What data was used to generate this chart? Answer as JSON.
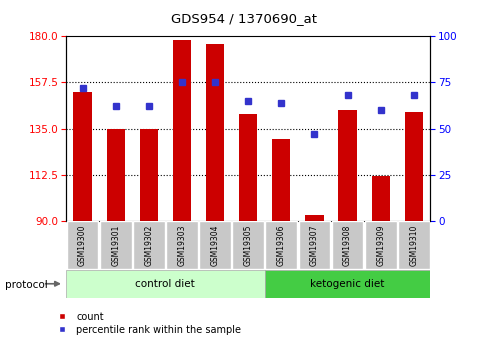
{
  "title": "GDS954 / 1370690_at",
  "samples": [
    "GSM19300",
    "GSM19301",
    "GSM19302",
    "GSM19303",
    "GSM19304",
    "GSM19305",
    "GSM19306",
    "GSM19307",
    "GSM19308",
    "GSM19309",
    "GSM19310"
  ],
  "bar_values": [
    153,
    135,
    135,
    178,
    176,
    142,
    130,
    93,
    144,
    112,
    143
  ],
  "percentile_values": [
    72,
    62,
    62,
    75,
    75,
    65,
    64,
    47,
    68,
    60,
    68
  ],
  "ylim_left": [
    90,
    180
  ],
  "ylim_right": [
    0,
    100
  ],
  "yticks_left": [
    90,
    112.5,
    135,
    157.5,
    180
  ],
  "yticks_right": [
    0,
    25,
    50,
    75,
    100
  ],
  "bar_color": "#cc0000",
  "dot_color": "#3333cc",
  "plot_bg": "#ffffff",
  "control_diet_color": "#ccffcc",
  "ketogenic_diet_color": "#44cc44",
  "tick_label_bg": "#cccccc",
  "control_samples": 6,
  "ketogenic_samples": 5,
  "legend_count": "count",
  "legend_pct": "percentile rank within the sample",
  "protocol_label": "protocol",
  "control_label": "control diet",
  "ketogenic_label": "ketogenic diet"
}
